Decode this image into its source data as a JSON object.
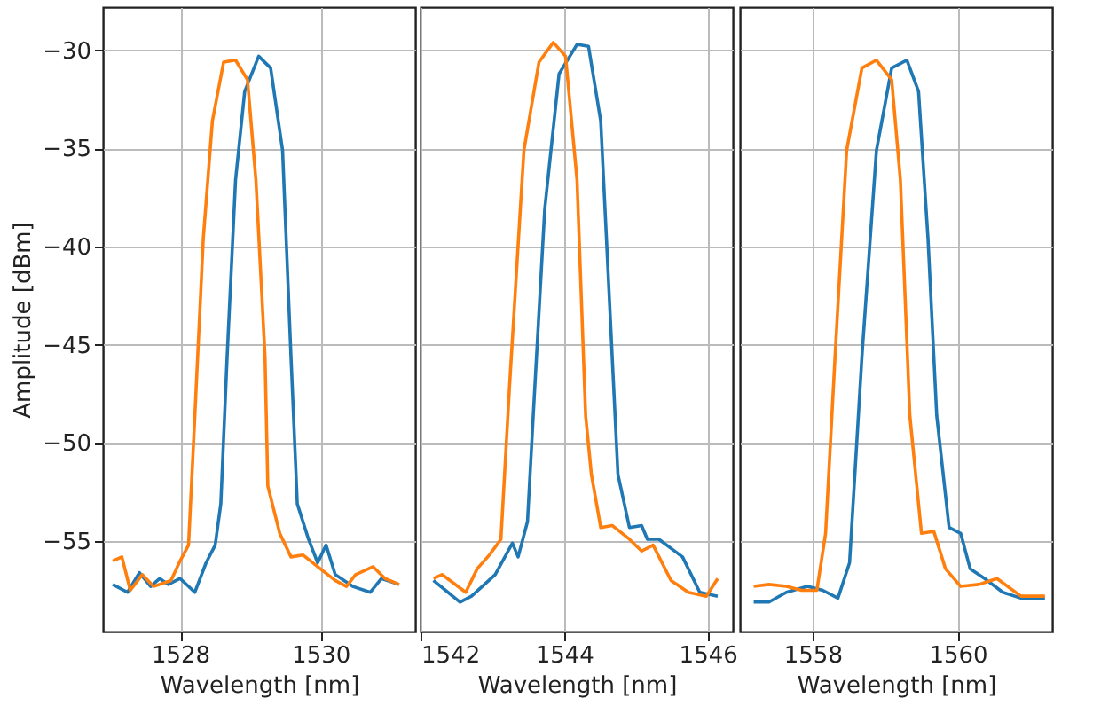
{
  "chart_data": [
    {
      "type": "line",
      "xlabel": "Wavelength [nm]",
      "ylabel": "Amplitude [dBm]",
      "xlim": [
        1526.9,
        1531.35
      ],
      "xticks": [
        1528,
        1530
      ],
      "ylim": [
        -59.6,
        -27.8
      ],
      "yticks": [
        -55,
        -50,
        -45,
        -40,
        -35,
        -30
      ],
      "grid": true,
      "marker": "none",
      "line_style": "solid",
      "series": [
        {
          "color": "#1f77b4",
          "x": [
            1527.04,
            1527.25,
            1527.42,
            1527.58,
            1527.71,
            1527.83,
            1528.0,
            1528.21,
            1528.37,
            1528.5,
            1528.58,
            1528.67,
            1528.79,
            1528.92,
            1529.12,
            1529.29,
            1529.46,
            1529.58,
            1529.67,
            1529.83,
            1529.96,
            1530.08,
            1530.21,
            1530.46,
            1530.71,
            1530.87,
            1531.12
          ],
          "values": [
            -57.2,
            -57.6,
            -56.6,
            -57.3,
            -56.9,
            -57.2,
            -56.9,
            -57.6,
            -56.1,
            -55.2,
            -53.1,
            -45.6,
            -36.6,
            -32.1,
            -30.3,
            -30.9,
            -35.1,
            -45.6,
            -53.1,
            -54.9,
            -56.1,
            -55.2,
            -56.7,
            -57.3,
            -57.6,
            -56.9,
            -57.2
          ]
        },
        {
          "color": "#ff7f0e",
          "x": [
            1527.04,
            1527.17,
            1527.29,
            1527.46,
            1527.62,
            1527.87,
            1528.0,
            1528.12,
            1528.21,
            1528.33,
            1528.46,
            1528.62,
            1528.79,
            1528.96,
            1529.08,
            1529.21,
            1529.25,
            1529.42,
            1529.58,
            1529.75,
            1529.96,
            1530.21,
            1530.37,
            1530.5,
            1530.75,
            1530.92,
            1531.12
          ],
          "values": [
            -56.0,
            -55.8,
            -57.5,
            -56.7,
            -57.3,
            -57.0,
            -56.0,
            -55.2,
            -48.6,
            -39.6,
            -33.6,
            -30.6,
            -30.5,
            -31.5,
            -36.6,
            -45.6,
            -52.2,
            -54.6,
            -55.8,
            -55.7,
            -56.3,
            -57.0,
            -57.3,
            -56.7,
            -56.3,
            -56.9,
            -57.2
          ]
        }
      ]
    },
    {
      "type": "line",
      "xlabel": "Wavelength [nm]",
      "xlim": [
        1542,
        1546.35
      ],
      "xticks": [
        1542,
        1544,
        1546
      ],
      "ylim": [
        -59.6,
        -27.8
      ],
      "yticks": [
        -55,
        -50,
        -45,
        -40,
        -35,
        -30
      ],
      "tick_labels": "x",
      "grid": true,
      "marker": "none",
      "line_style": "solid",
      "series": [
        {
          "color": "#1f77b4",
          "x": [
            1542.18,
            1542.55,
            1542.71,
            1543.04,
            1543.28,
            1543.36,
            1543.49,
            1543.57,
            1543.73,
            1543.93,
            1544.18,
            1544.34,
            1544.51,
            1544.63,
            1544.75,
            1544.91,
            1545.08,
            1545.16,
            1545.32,
            1545.65,
            1545.89,
            1546.14
          ],
          "values": [
            -57.0,
            -58.1,
            -57.8,
            -56.7,
            -55.1,
            -55.8,
            -54.0,
            -48.6,
            -38.1,
            -31.2,
            -29.7,
            -29.8,
            -33.6,
            -42.6,
            -51.6,
            -54.3,
            -54.2,
            -54.9,
            -54.9,
            -55.8,
            -57.6,
            -57.8
          ]
        },
        {
          "color": "#ff7f0e",
          "x": [
            1542.18,
            1542.3,
            1542.63,
            1542.79,
            1542.96,
            1543.12,
            1543.24,
            1543.44,
            1543.65,
            1543.85,
            1544.02,
            1544.18,
            1544.3,
            1544.38,
            1544.51,
            1544.67,
            1544.91,
            1545.08,
            1545.24,
            1545.49,
            1545.73,
            1545.98,
            1546.14
          ],
          "values": [
            -56.9,
            -56.7,
            -57.6,
            -56.4,
            -55.7,
            -54.9,
            -47.1,
            -35.1,
            -30.6,
            -29.6,
            -30.3,
            -36.6,
            -48.6,
            -51.6,
            -54.3,
            -54.2,
            -54.9,
            -55.5,
            -55.2,
            -57.0,
            -57.6,
            -57.8,
            -56.9
          ]
        }
      ]
    },
    {
      "type": "line",
      "xlabel": "Wavelength [nm]",
      "xlim": [
        1557,
        1561.3
      ],
      "xticks": [
        1558,
        1560
      ],
      "ylim": [
        -59.6,
        -27.8
      ],
      "yticks": [
        -55,
        -50,
        -45,
        -40,
        -35,
        -30
      ],
      "tick_labels": "x",
      "grid": true,
      "marker": "none",
      "line_style": "solid",
      "series": [
        {
          "color": "#1f77b4",
          "x": [
            1557.19,
            1557.4,
            1557.64,
            1557.93,
            1558.14,
            1558.35,
            1558.51,
            1558.68,
            1558.88,
            1559.09,
            1559.3,
            1559.46,
            1559.59,
            1559.71,
            1559.88,
            1560.04,
            1560.17,
            1560.37,
            1560.62,
            1560.87,
            1561.2
          ],
          "values": [
            -58.1,
            -58.1,
            -57.6,
            -57.3,
            -57.5,
            -57.9,
            -56.1,
            -45.6,
            -35.1,
            -30.9,
            -30.5,
            -32.1,
            -39.6,
            -48.6,
            -54.3,
            -54.6,
            -56.4,
            -56.9,
            -57.6,
            -57.9,
            -57.9
          ]
        },
        {
          "color": "#ff7f0e",
          "x": [
            1557.19,
            1557.4,
            1557.64,
            1557.85,
            1558.06,
            1558.18,
            1558.31,
            1558.47,
            1558.68,
            1558.88,
            1559.09,
            1559.21,
            1559.34,
            1559.5,
            1559.67,
            1559.83,
            1560.04,
            1560.29,
            1560.54,
            1560.87,
            1561.2
          ],
          "values": [
            -57.3,
            -57.2,
            -57.3,
            -57.5,
            -57.5,
            -54.6,
            -45.6,
            -35.1,
            -30.9,
            -30.5,
            -31.5,
            -36.6,
            -48.6,
            -54.6,
            -54.5,
            -56.4,
            -57.3,
            -57.2,
            -56.9,
            -57.8,
            -57.8
          ]
        }
      ]
    }
  ]
}
